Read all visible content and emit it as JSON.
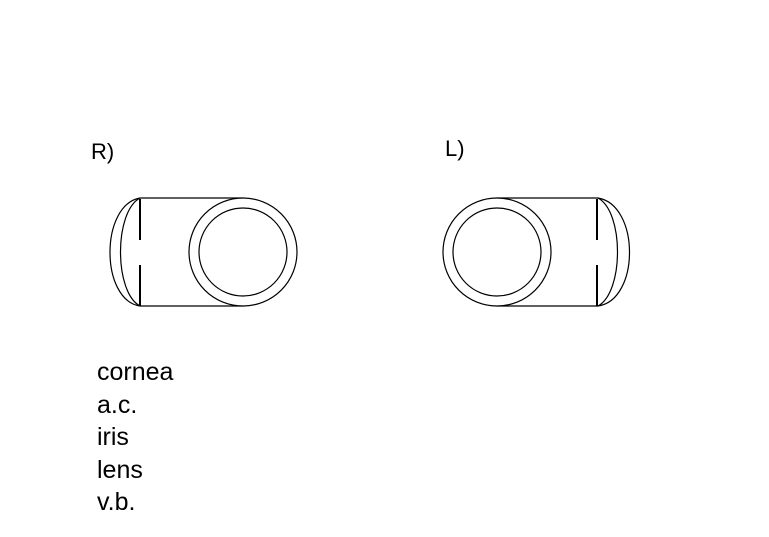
{
  "eyes": {
    "right_label": "R)",
    "left_label": "L)"
  },
  "legend": {
    "items": [
      "cornea",
      "a.c.",
      "iris",
      "lens",
      "v.b."
    ]
  },
  "colors": {
    "stroke": "#000000",
    "soft_stroke": "#555555",
    "background": "#ffffff"
  }
}
